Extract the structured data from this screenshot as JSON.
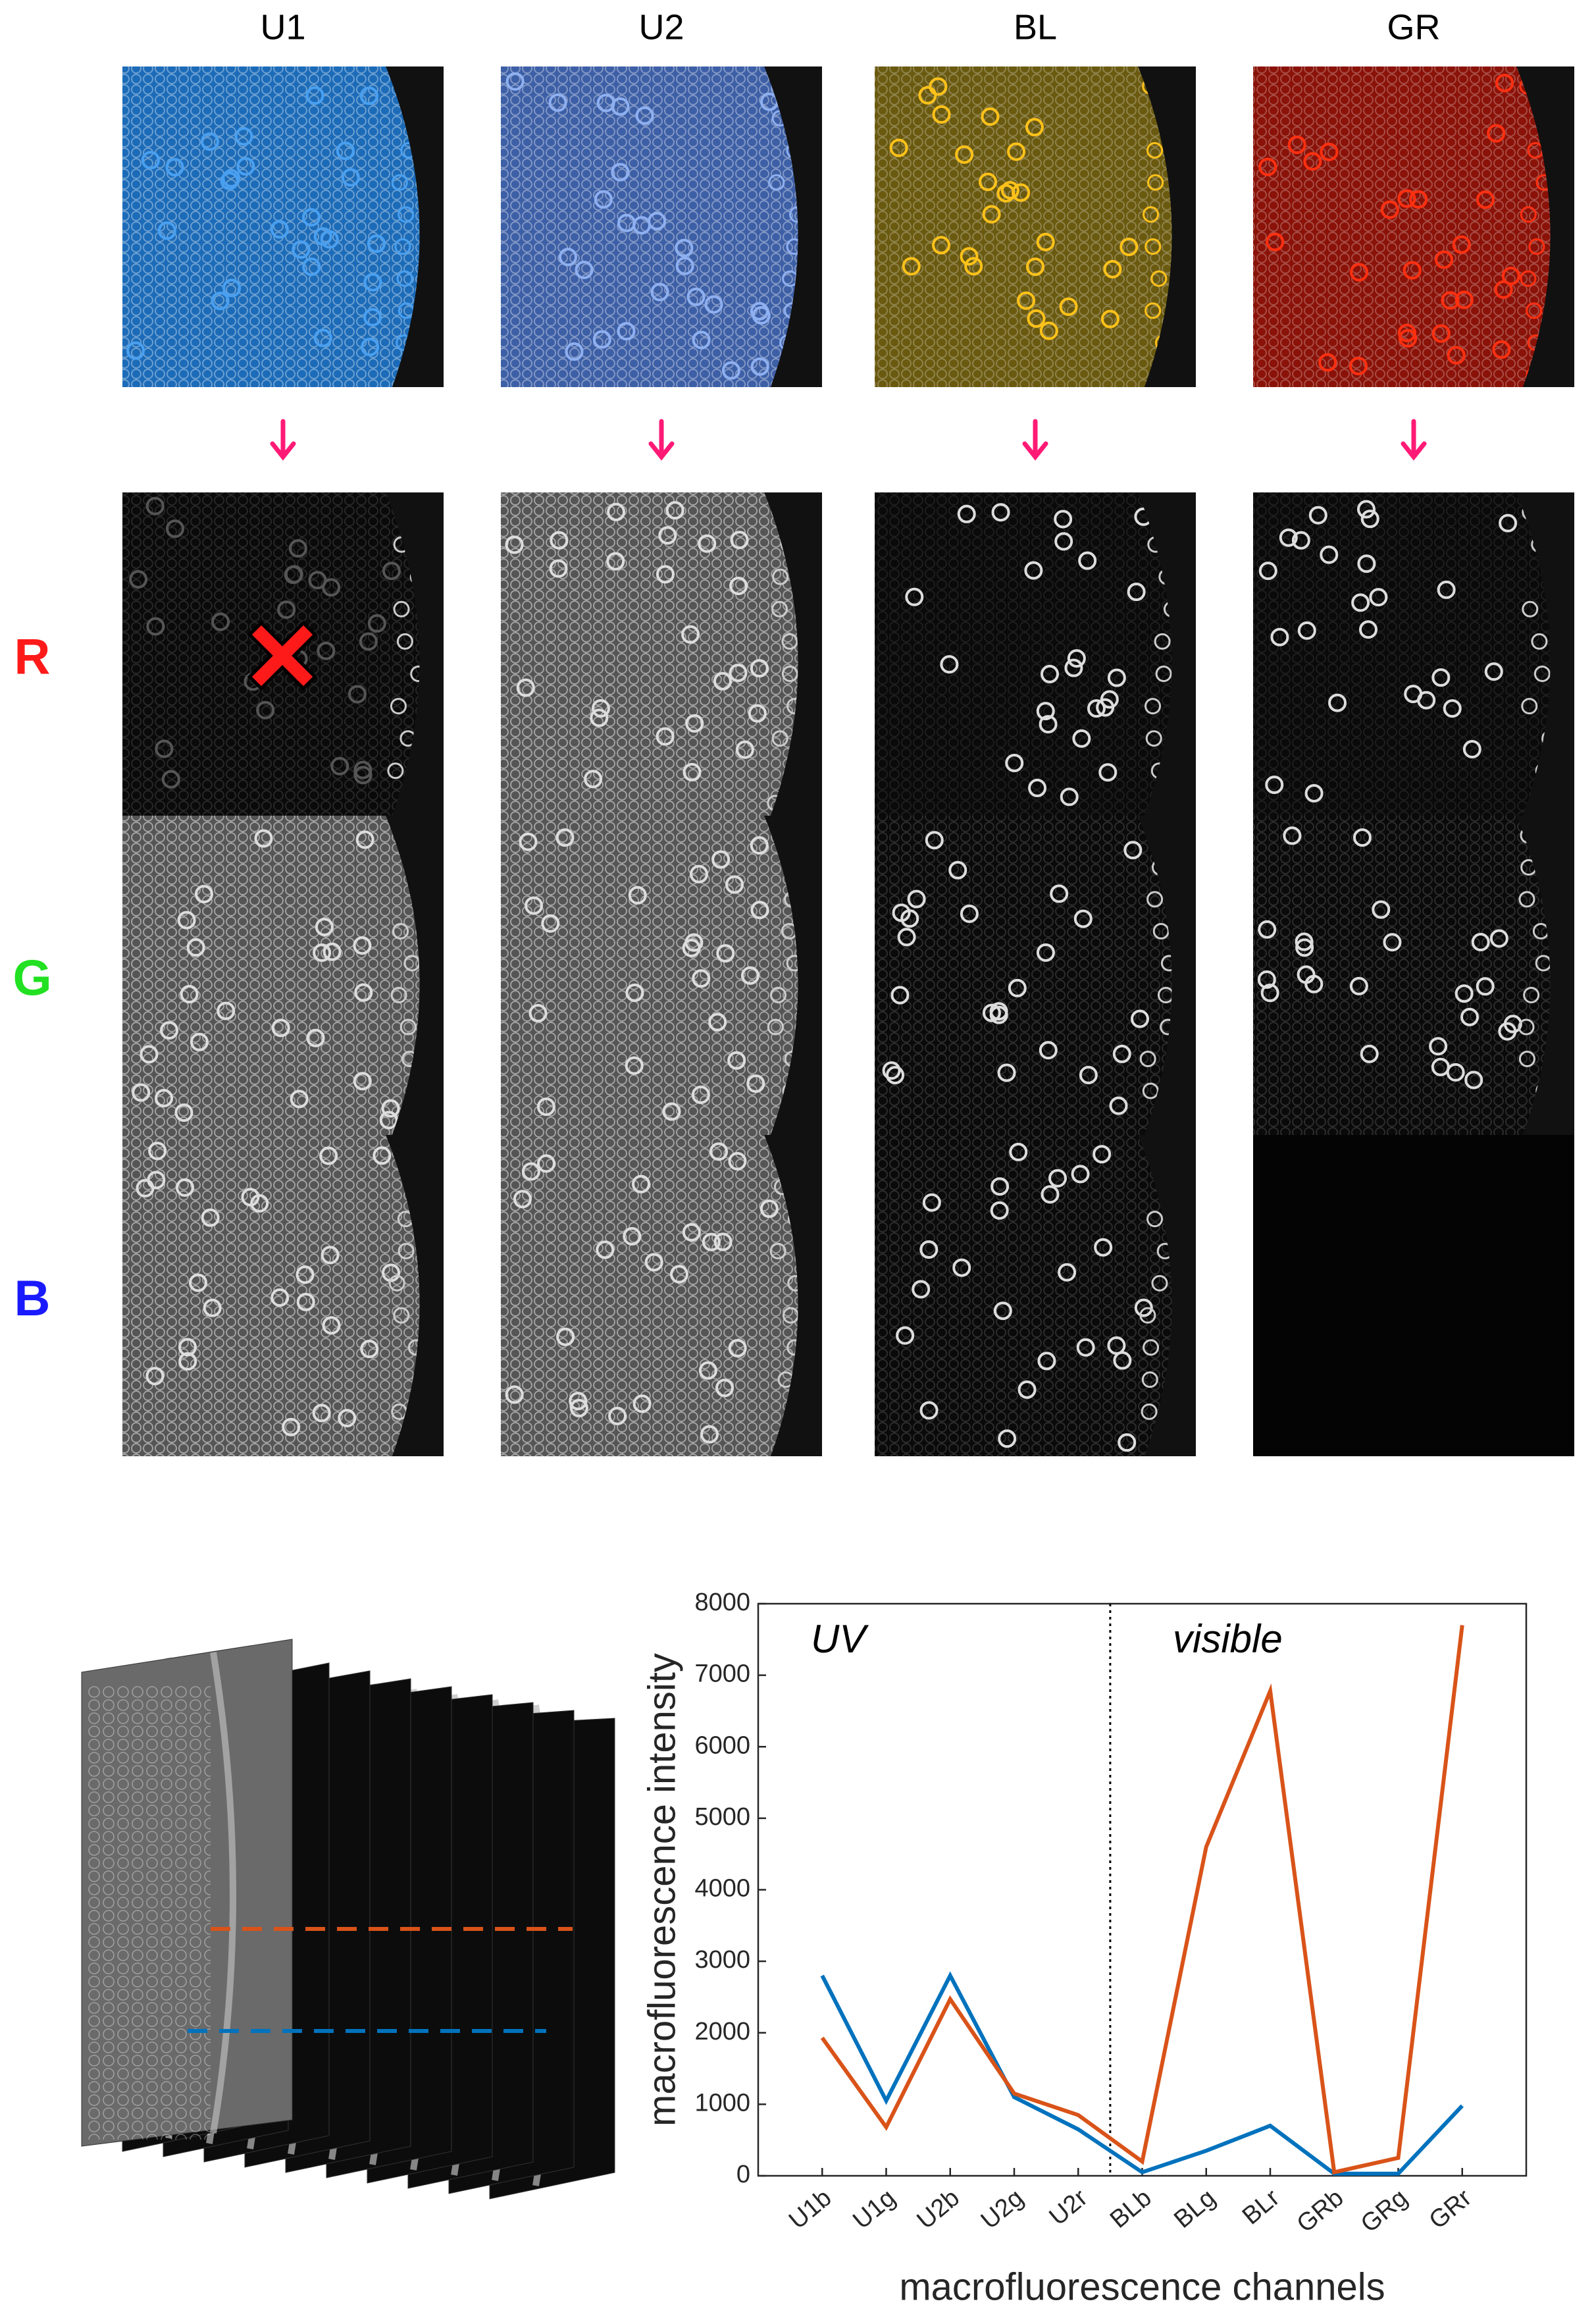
{
  "columns": [
    "U1",
    "U2",
    "BL",
    "GR"
  ],
  "rows": [
    "R",
    "G",
    "B"
  ],
  "chart_data": {
    "type": "line",
    "categories": [
      "U1b",
      "U1g",
      "U2b",
      "U2g",
      "U2r",
      "BLb",
      "BLg",
      "BLr",
      "GRb",
      "GRg",
      "GRr"
    ],
    "series": [
      {
        "color": "#0072bd",
        "values": [
          2800,
          1050,
          2800,
          1100,
          650,
          50,
          350,
          700,
          30,
          30,
          980
        ]
      },
      {
        "color": "#d95319",
        "values": [
          1930,
          680,
          2470,
          1150,
          850,
          200,
          4600,
          6780,
          50,
          250,
          7700
        ]
      }
    ],
    "ylim": [
      0,
      8000
    ],
    "yticks": [
      0,
      1000,
      2000,
      3000,
      4000,
      5000,
      6000,
      7000,
      8000
    ],
    "xlabel": "macrofluorescence channels",
    "ylabel": "macrofluorescence intensity",
    "annotations": [
      "UV",
      "visible"
    ]
  }
}
